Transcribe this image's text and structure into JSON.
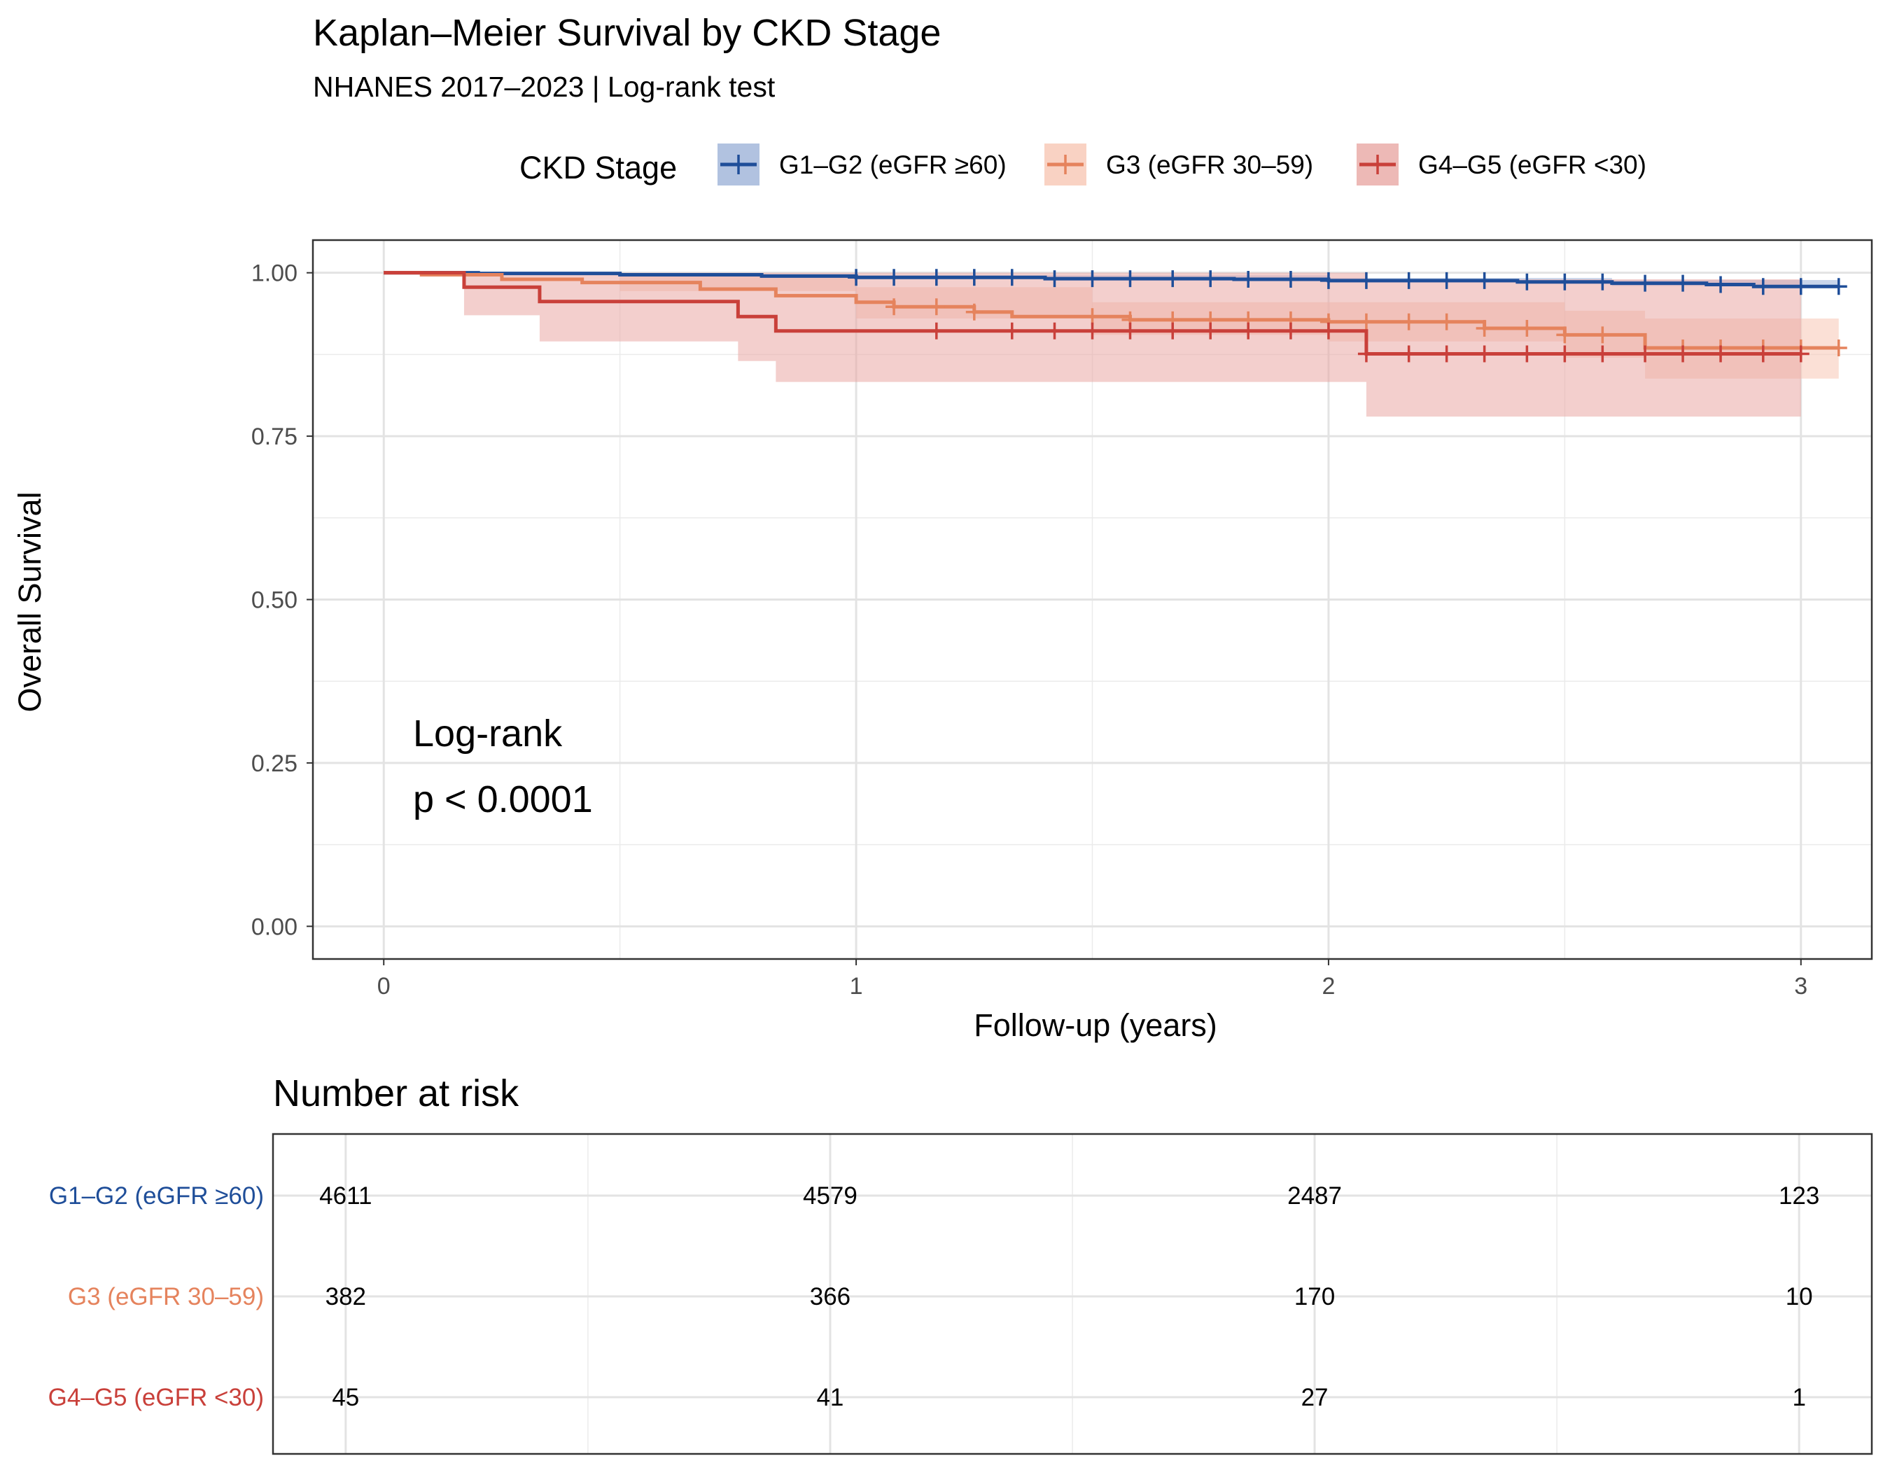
{
  "chart_data": {
    "type": "line",
    "subtype": "kaplan-meier",
    "title": "Kaplan–Meier Survival by CKD Stage",
    "subtitle": "NHANES 2017–2023 | Log-rank test",
    "xlabel": "Follow-up (years)",
    "ylabel": "Overall Survival",
    "xlim": [
      -0.15,
      3.15
    ],
    "ylim": [
      -0.05,
      1.05
    ],
    "xticks": [
      0,
      1,
      2,
      3
    ],
    "yticks": [
      0,
      0.25,
      0.5,
      0.75,
      1
    ],
    "ytick_labels": [
      "0.00",
      "0.25",
      "0.50",
      "0.75",
      "1.00"
    ],
    "grid": true,
    "legend": {
      "title": "CKD Stage",
      "position": "top"
    },
    "annotation": {
      "line1": "Log-rank",
      "line2": "p < 0.0001"
    },
    "series": [
      {
        "name": "G1–G2 (eGFR ≥60)",
        "color": "#1f4e99",
        "fill": "#9db3d8",
        "steps": [
          [
            0,
            1.0
          ],
          [
            0.2,
            0.999
          ],
          [
            0.5,
            0.997
          ],
          [
            0.8,
            0.995
          ],
          [
            1.0,
            0.993
          ],
          [
            1.4,
            0.991
          ],
          [
            1.8,
            0.99
          ],
          [
            2.0,
            0.988
          ],
          [
            2.4,
            0.986
          ],
          [
            2.6,
            0.984
          ],
          [
            2.8,
            0.982
          ],
          [
            2.9,
            0.979
          ],
          [
            3.08,
            0.979
          ]
        ],
        "lower": [
          [
            0,
            1.0
          ],
          [
            1.0,
            0.99
          ],
          [
            2.0,
            0.985
          ],
          [
            2.6,
            0.98
          ],
          [
            3.08,
            0.975
          ]
        ],
        "upper": [
          [
            0,
            1.0
          ],
          [
            1.0,
            0.996
          ],
          [
            2.0,
            0.992
          ],
          [
            2.6,
            0.989
          ],
          [
            3.08,
            0.984
          ]
        ],
        "censor": [
          1.0,
          1.08,
          1.17,
          1.25,
          1.33,
          1.42,
          1.5,
          1.58,
          1.67,
          1.75,
          1.83,
          1.92,
          2.0,
          2.08,
          2.17,
          2.25,
          2.33,
          2.42,
          2.5,
          2.58,
          2.67,
          2.75,
          2.83,
          2.92,
          3.0,
          3.08
        ]
      },
      {
        "name": "G3 (eGFR 30–59)",
        "color": "#e5835d",
        "fill": "#f7c7b4",
        "steps": [
          [
            0,
            1.0
          ],
          [
            0.08,
            0.997
          ],
          [
            0.25,
            0.99
          ],
          [
            0.42,
            0.985
          ],
          [
            0.67,
            0.975
          ],
          [
            0.83,
            0.965
          ],
          [
            1.0,
            0.955
          ],
          [
            1.08,
            0.948
          ],
          [
            1.25,
            0.94
          ],
          [
            1.33,
            0.933
          ],
          [
            1.58,
            0.928
          ],
          [
            2.0,
            0.925
          ],
          [
            2.33,
            0.915
          ],
          [
            2.5,
            0.905
          ],
          [
            2.67,
            0.885
          ],
          [
            3.08,
            0.885
          ]
        ],
        "lower": [
          [
            0,
            1.0
          ],
          [
            0.5,
            0.972
          ],
          [
            1.0,
            0.93
          ],
          [
            1.5,
            0.905
          ],
          [
            2.0,
            0.895
          ],
          [
            2.5,
            0.87
          ],
          [
            2.67,
            0.838
          ],
          [
            3.08,
            0.838
          ]
        ],
        "upper": [
          [
            0,
            1.0
          ],
          [
            0.5,
            0.997
          ],
          [
            1.0,
            0.978
          ],
          [
            1.5,
            0.955
          ],
          [
            2.0,
            0.955
          ],
          [
            2.5,
            0.942
          ],
          [
            2.67,
            0.93
          ],
          [
            3.08,
            0.93
          ]
        ],
        "censor": [
          1.08,
          1.17,
          1.25,
          1.5,
          1.58,
          1.67,
          1.75,
          1.83,
          1.92,
          2.0,
          2.08,
          2.17,
          2.25,
          2.33,
          2.42,
          2.5,
          2.58,
          2.75,
          2.83,
          2.92,
          3.0,
          3.08
        ]
      },
      {
        "name": "G4–G5 (eGFR <30)",
        "color": "#c9403a",
        "fill": "#e9a7a4",
        "steps": [
          [
            0,
            1.0
          ],
          [
            0.17,
            0.978
          ],
          [
            0.33,
            0.956
          ],
          [
            0.75,
            0.933
          ],
          [
            0.83,
            0.911
          ],
          [
            2.08,
            0.876
          ],
          [
            3.0,
            0.876
          ]
        ],
        "lower": [
          [
            0,
            1.0
          ],
          [
            0.17,
            0.935
          ],
          [
            0.33,
            0.895
          ],
          [
            0.75,
            0.865
          ],
          [
            0.83,
            0.833
          ],
          [
            2.08,
            0.78
          ],
          [
            3.0,
            0.78
          ]
        ],
        "upper": [
          [
            0,
            1.0
          ],
          [
            0.17,
            1.0
          ],
          [
            2.08,
            0.99
          ],
          [
            3.0,
            0.99
          ]
        ],
        "censor": [
          1.17,
          1.33,
          1.42,
          1.5,
          1.58,
          1.67,
          1.75,
          1.83,
          1.92,
          2.0,
          2.08,
          2.17,
          2.25,
          2.33,
          2.42,
          2.5,
          2.58,
          2.67,
          2.75,
          2.83,
          2.92,
          3.0
        ]
      }
    ],
    "risk_table": {
      "title": "Number at risk",
      "times": [
        0,
        1,
        2,
        3
      ],
      "rows": [
        {
          "label": "G1–G2 (eGFR ≥60)",
          "values": [
            "4611",
            "4579",
            "2487",
            "123"
          ]
        },
        {
          "label": "G3 (eGFR 30–59)",
          "values": [
            "382",
            "366",
            "170",
            "10"
          ]
        },
        {
          "label": "G4–G5 (eGFR <30)",
          "values": [
            "45",
            "41",
            "27",
            "1"
          ]
        }
      ]
    }
  }
}
